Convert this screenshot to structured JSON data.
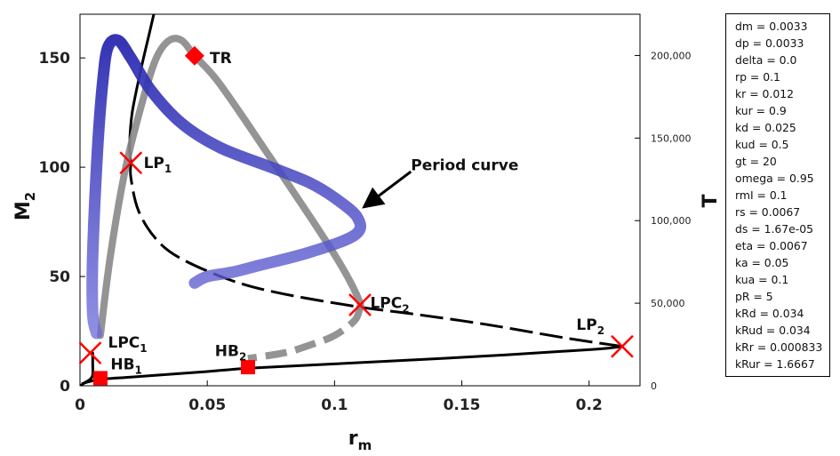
{
  "chart_data": {
    "type": "line",
    "xlabel": "r",
    "xlabel_sub": "m",
    "ylabel": "M",
    "ylabel_sub": "2",
    "y2label": "T",
    "xlim": [
      0,
      0.22
    ],
    "ylim": [
      0,
      170
    ],
    "y2lim": [
      0,
      225000
    ],
    "xticks": [
      0,
      0.05,
      0.1,
      0.15,
      0.2
    ],
    "xtick_labels": [
      "0",
      "0.05",
      "0.1",
      "0.15",
      "0.2"
    ],
    "yticks": [
      0,
      50,
      100,
      150
    ],
    "ytick_labels": [
      "0",
      "50",
      "100",
      "150"
    ],
    "y2ticks": [
      0,
      50000,
      100000,
      150000,
      200000
    ],
    "y2tick_labels": [
      "0",
      "50,000",
      "100,000",
      "150,000",
      "200,000"
    ],
    "series": [
      {
        "style": "solid",
        "color": "#000000",
        "points": [
          [
            0.001,
            1
          ],
          [
            0.004,
            2
          ],
          [
            0.008,
            3
          ],
          [
            0.02,
            4
          ],
          [
            0.05,
            6.5
          ],
          [
            0.066,
            8
          ],
          [
            0.1,
            10
          ],
          [
            0.15,
            13
          ],
          [
            0.2,
            16.5
          ],
          [
            0.213,
            18
          ]
        ]
      },
      {
        "style": "dashed",
        "color": "#000000",
        "points": [
          [
            0.213,
            18
          ],
          [
            0.19,
            22
          ],
          [
            0.16,
            28
          ],
          [
            0.13,
            33
          ],
          [
            0.11,
            36
          ],
          [
            0.08,
            42
          ],
          [
            0.06,
            48
          ],
          [
            0.04,
            58
          ],
          [
            0.03,
            67
          ],
          [
            0.023,
            80
          ],
          [
            0.02,
            95
          ],
          [
            0.02,
            102
          ]
        ]
      },
      {
        "style": "solid",
        "color": "#000000",
        "points": [
          [
            0.02,
            102
          ],
          [
            0.0195,
            110
          ],
          [
            0.0205,
            125
          ],
          [
            0.024,
            145
          ],
          [
            0.027,
            160
          ],
          [
            0.029,
            170
          ]
        ]
      },
      {
        "style": "solid",
        "color": "#000000",
        "points": [
          [
            0.0005,
            0.3
          ],
          [
            0.002,
            1.5
          ],
          [
            0.004,
            3
          ],
          [
            0.005,
            5
          ],
          [
            0.005,
            10
          ],
          [
            0.005,
            15
          ]
        ]
      },
      {
        "style": "periodic-stable",
        "color": "#888888",
        "points": [
          [
            0.008,
            23
          ],
          [
            0.012,
            60
          ],
          [
            0.018,
            100
          ],
          [
            0.025,
            132
          ],
          [
            0.03,
            150
          ],
          [
            0.035,
            158
          ],
          [
            0.04,
            158
          ],
          [
            0.045,
            151
          ],
          [
            0.055,
            138
          ],
          [
            0.075,
            104
          ],
          [
            0.09,
            78
          ],
          [
            0.1,
            60
          ],
          [
            0.106,
            48
          ],
          [
            0.11,
            38
          ],
          [
            0.11,
            36
          ]
        ]
      },
      {
        "style": "periodic-unstable",
        "color": "#888888",
        "points": [
          [
            0.11,
            36
          ],
          [
            0.108,
            30
          ],
          [
            0.1,
            23
          ],
          [
            0.09,
            18.5
          ],
          [
            0.08,
            15
          ],
          [
            0.066,
            12.5
          ]
        ]
      },
      {
        "style": "period",
        "color": "#3333bb",
        "points": [
          [
            0.0065,
            24
          ],
          [
            0.005,
            33
          ],
          [
            0.005,
            60
          ],
          [
            0.007,
            110
          ],
          [
            0.009,
            140
          ],
          [
            0.011,
            155
          ],
          [
            0.015,
            158
          ],
          [
            0.02,
            150
          ],
          [
            0.028,
            135
          ],
          [
            0.04,
            120
          ],
          [
            0.055,
            109
          ],
          [
            0.075,
            100
          ],
          [
            0.09,
            93
          ],
          [
            0.1,
            86
          ],
          [
            0.109,
            77
          ],
          [
            0.108,
            69
          ],
          [
            0.09,
            61
          ],
          [
            0.07,
            55
          ],
          [
            0.06,
            52
          ],
          [
            0.05,
            50
          ],
          [
            0.045,
            47
          ]
        ]
      }
    ],
    "labels": [
      {
        "text": "LP",
        "sub": "1",
        "x": 0.025,
        "y": 102
      },
      {
        "text": "LPC",
        "sub": "1",
        "x": 0.011,
        "y": 20
      },
      {
        "text": "HB",
        "sub": "1",
        "x": 0.012,
        "y": 10
      },
      {
        "text": "HB",
        "sub": "2",
        "x": 0.053,
        "y": 16
      },
      {
        "text": "LPC",
        "sub": "2",
        "x": 0.114,
        "y": 38
      },
      {
        "text": "LP",
        "sub": "2",
        "x": 0.195,
        "y": 28
      },
      {
        "text": "TR",
        "x": 0.051,
        "y": 150
      },
      {
        "text": "Period curve",
        "x": 0.13,
        "y": 101
      }
    ],
    "markers": [
      {
        "shape": "x",
        "x": 0.02,
        "y": 102,
        "color": "#ff0000"
      },
      {
        "shape": "x",
        "x": 0.004,
        "y": 15,
        "color": "#ff0000"
      },
      {
        "shape": "x",
        "x": 0.11,
        "y": 37,
        "color": "#ff0000"
      },
      {
        "shape": "x",
        "x": 0.213,
        "y": 18,
        "color": "#ff0000"
      },
      {
        "shape": "square",
        "x": 0.008,
        "y": 3.5,
        "color": "#ff0000"
      },
      {
        "shape": "square",
        "x": 0.066,
        "y": 8.5,
        "color": "#ff0000"
      },
      {
        "shape": "diamond",
        "x": 0.045,
        "y": 151,
        "color": "#ff0000"
      }
    ],
    "arrow": {
      "from": [
        0.13,
        98
      ],
      "to": [
        0.112,
        82
      ]
    }
  },
  "params": [
    "dm = 0.0033",
    "dp = 0.0033",
    "delta = 0.0",
    "rp = 0.1",
    "kr = 0.012",
    "kur = 0.9",
    "kd = 0.025",
    "kud = 0.5",
    "gt = 20",
    "omega = 0.95",
    "rmI = 0.1",
    "rs = 0.0067",
    "ds = 1.67e-05",
    "eta = 0.0067",
    "ka = 0.05",
    "kua = 0.1",
    "pR = 5",
    "kRd = 0.034",
    "kRud = 0.034",
    "kRr = 0.000833",
    "kRur = 1.6667"
  ]
}
